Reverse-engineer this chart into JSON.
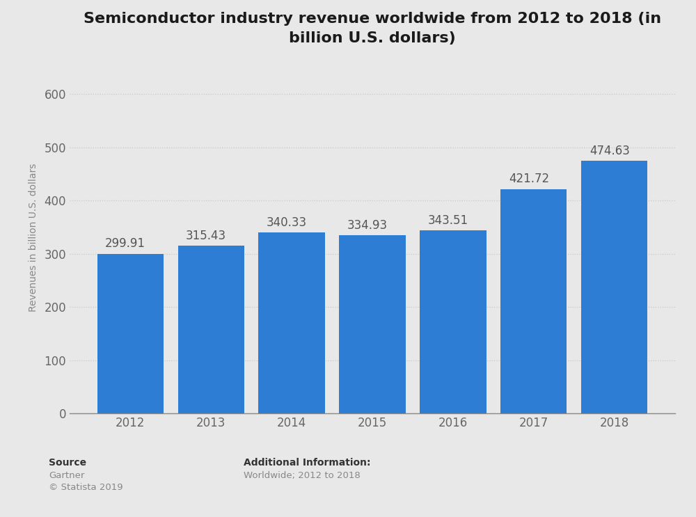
{
  "title": "Semiconductor industry revenue worldwide from 2012 to 2018 (in\nbillion U.S. dollars)",
  "years": [
    "2012",
    "2013",
    "2014",
    "2015",
    "2016",
    "2017",
    "2018"
  ],
  "values": [
    299.91,
    315.43,
    340.33,
    334.93,
    343.51,
    421.72,
    474.63
  ],
  "bar_color": "#2e7dd4",
  "ylabel": "Revenues in billion U.S. dollars",
  "ylim": [
    0,
    660
  ],
  "yticks": [
    0,
    100,
    200,
    300,
    400,
    500,
    600
  ],
  "background_color": "#e8e8e8",
  "plot_bg_color": "#e8e8e8",
  "grid_color": "#c8c8c8",
  "title_fontsize": 16,
  "axis_label_fontsize": 10,
  "tick_fontsize": 12,
  "annotation_fontsize": 12,
  "source_label": "Source",
  "source_name": "Gartner",
  "source_copy": "© Statista 2019",
  "additional_label": "Additional Information:",
  "additional_info": "Worldwide; 2012 to 2018"
}
